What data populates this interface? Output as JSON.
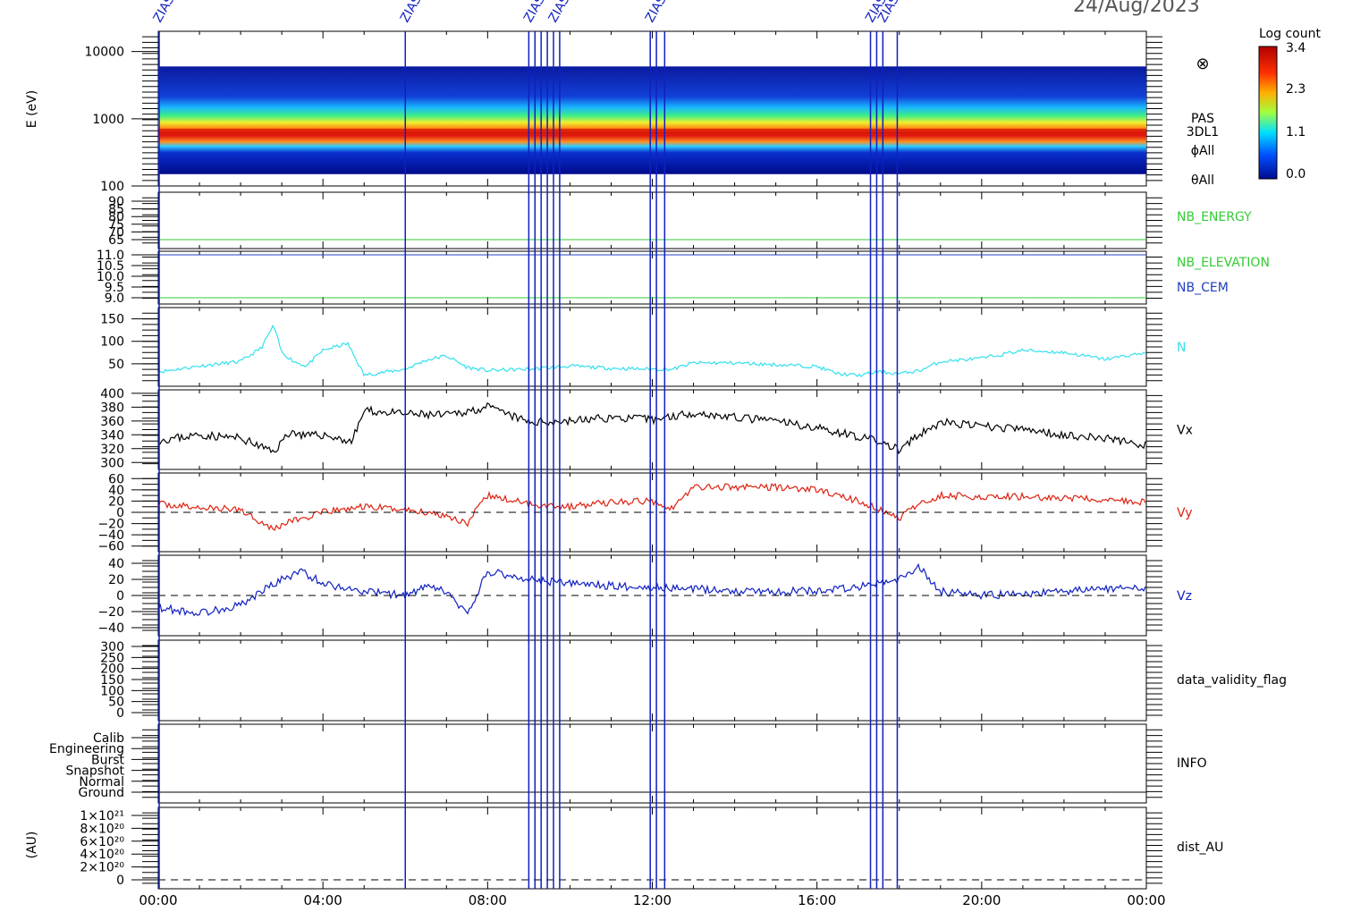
{
  "date": "24/Aug/2023",
  "colorbar": {
    "title": "Log count",
    "ticks": [
      "3.4",
      "2.3",
      "1.1",
      "0.0"
    ]
  },
  "vline_label": "ZIAS",
  "x_ticks": [
    "00:00",
    "04:00",
    "08:00",
    "12:00",
    "16:00",
    "20:00",
    "00:00"
  ],
  "chart_data": [
    {
      "id": "spectrogram",
      "type": "heatmap",
      "ylabel": "E (eV)",
      "yscale": "log",
      "ylim": [
        100,
        20000
      ],
      "y_ticks": [
        "10000",
        "1000",
        "100"
      ],
      "side_labels": [
        "PAS",
        "3DL1",
        "ϕAll",
        "θAll"
      ],
      "description_values": {
        "peak_energy_eV": 650,
        "range_eV": [
          150,
          6000
        ]
      }
    },
    {
      "id": "nb_energy",
      "type": "line",
      "y_ticks": [
        "90",
        "85",
        "80",
        "75",
        "70",
        "65"
      ],
      "series": [
        {
          "name": "NB_ENERGY",
          "color": "#33cc33",
          "values": [
            65
          ]
        }
      ]
    },
    {
      "id": "nb_elevation",
      "type": "line",
      "y_ticks": [
        "11.0",
        "10.5",
        "10.0",
        "9.5",
        "9.0"
      ],
      "series": [
        {
          "name": "NB_ELEVATION",
          "color": "#33cc33",
          "values": [
            9.0
          ]
        },
        {
          "name": "NB_CEM",
          "color": "#1f3fbf",
          "values": [
            11.0
          ]
        }
      ]
    },
    {
      "id": "density",
      "type": "line",
      "y_ticks": [
        "150",
        "100",
        "50"
      ],
      "ylim": [
        0,
        175
      ],
      "series": [
        {
          "name": "N",
          "color": "#33e0ee",
          "x": [
            0,
            1,
            2,
            2.5,
            2.8,
            3,
            3.3,
            3.6,
            4,
            4.6,
            5,
            6,
            6.5,
            7,
            7.5,
            8,
            9,
            10,
            11,
            12,
            12.5,
            13,
            14,
            15,
            16,
            16.5,
            17,
            17.5,
            18,
            18.5,
            19,
            20,
            21,
            22,
            23,
            24
          ],
          "values": [
            32,
            45,
            55,
            85,
            135,
            75,
            55,
            45,
            80,
            95,
            25,
            38,
            58,
            68,
            42,
            35,
            38,
            45,
            40,
            38,
            38,
            52,
            52,
            48,
            44,
            28,
            24,
            32,
            28,
            35,
            55,
            62,
            80,
            75,
            60,
            75
          ]
        }
      ]
    },
    {
      "id": "vx",
      "type": "line",
      "y_ticks": [
        "400",
        "380",
        "360",
        "340",
        "320",
        "300"
      ],
      "ylim": [
        290,
        405
      ],
      "series": [
        {
          "name": "Vx",
          "color": "#000000",
          "x": [
            0,
            1,
            2,
            2.8,
            3.2,
            3.6,
            4,
            4.7,
            5,
            6,
            7,
            8,
            9,
            10,
            11,
            12,
            13,
            14,
            15,
            16,
            17,
            17.5,
            18,
            18.5,
            19,
            20,
            21,
            22,
            23,
            24
          ],
          "values": [
            332,
            340,
            335,
            315,
            345,
            338,
            340,
            330,
            375,
            370,
            368,
            380,
            358,
            360,
            365,
            362,
            372,
            365,
            360,
            350,
            338,
            330,
            318,
            340,
            358,
            352,
            348,
            340,
            335,
            325
          ]
        }
      ]
    },
    {
      "id": "vy",
      "type": "line",
      "y_ticks": [
        "60",
        "40",
        "20",
        "0",
        "-20",
        "-40",
        "-60"
      ],
      "ylim": [
        -70,
        70
      ],
      "series": [
        {
          "name": "Vy",
          "color": "#dd2211",
          "x": [
            0,
            1,
            2,
            2.8,
            3.2,
            3.6,
            4,
            5,
            6,
            7,
            7.5,
            8,
            9,
            10,
            11,
            12,
            12.5,
            13,
            14,
            15,
            16,
            17,
            17.5,
            18,
            18.5,
            19,
            20,
            21,
            22,
            23,
            24
          ],
          "values": [
            15,
            8,
            5,
            -30,
            -15,
            -10,
            0,
            10,
            5,
            -5,
            -20,
            30,
            15,
            10,
            18,
            20,
            8,
            45,
            45,
            45,
            40,
            20,
            5,
            -10,
            15,
            30,
            28,
            28,
            25,
            22,
            18
          ]
        }
      ]
    },
    {
      "id": "vz",
      "type": "line",
      "y_ticks": [
        "40",
        "20",
        "0",
        "-20",
        "-40"
      ],
      "ylim": [
        -50,
        50
      ],
      "series": [
        {
          "name": "Vz",
          "color": "#1020c0",
          "x": [
            0,
            1,
            2,
            2.5,
            3,
            3.5,
            4,
            5,
            6,
            6.5,
            7,
            7.5,
            8,
            8.5,
            9,
            10,
            11,
            12,
            13,
            14,
            15,
            16,
            17,
            17.5,
            18,
            18.5,
            19,
            20,
            21,
            22,
            23,
            24
          ],
          "values": [
            -15,
            -22,
            -12,
            5,
            20,
            30,
            15,
            5,
            0,
            10,
            5,
            -25,
            30,
            25,
            20,
            15,
            12,
            10,
            8,
            6,
            5,
            6,
            10,
            15,
            20,
            35,
            5,
            0,
            2,
            5,
            8,
            10
          ]
        }
      ]
    },
    {
      "id": "data_validity_flag",
      "type": "line",
      "y_ticks": [
        "300",
        "250",
        "200",
        "150",
        "100",
        "50",
        "0"
      ],
      "series": [
        {
          "name": "data_validity_flag",
          "color": "#000000",
          "values": []
        }
      ]
    },
    {
      "id": "info",
      "type": "line",
      "y_ticks": [
        "Calib",
        "Engineering",
        "Burst",
        "Snapshot",
        "Normal",
        "Ground"
      ],
      "series": [
        {
          "name": "INFO",
          "color": "#000000",
          "values": []
        }
      ]
    },
    {
      "id": "dist_au",
      "type": "line",
      "ylabel": "(AU)",
      "y_ticks": [
        "1×10²¹",
        "8×10²⁰",
        "6×10²⁰",
        "4×10²⁰",
        "2×10²⁰",
        "0"
      ],
      "series": [
        {
          "name": "dist_AU",
          "color": "#000000",
          "values": [
            0
          ]
        }
      ]
    }
  ],
  "vlines_hours": [
    6.0,
    9.0,
    9.15,
    9.3,
    9.45,
    9.6,
    9.75,
    11.95,
    12.1,
    12.3,
    17.3,
    17.45,
    17.6,
    17.95
  ]
}
